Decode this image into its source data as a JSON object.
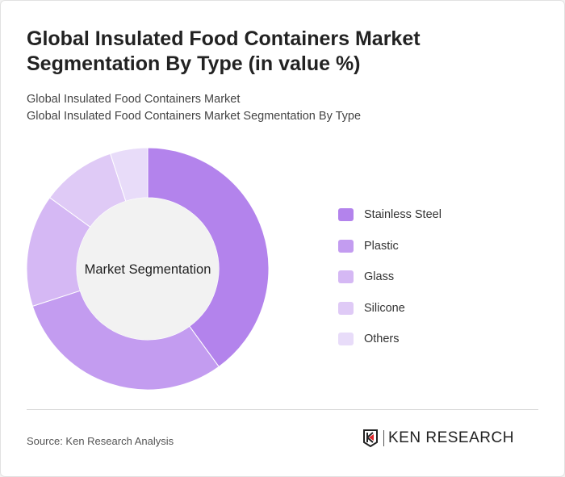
{
  "title": "Global Insulated Food Containers Market Segmentation By Type (in value %)",
  "subtitle_1": "Global Insulated Food Containers Market",
  "subtitle_2": "Global Insulated Food Containers Market Segmentation By Type",
  "source": "Source: Ken Research Analysis",
  "logo_text": "KEN RESEARCH",
  "chart_data": {
    "type": "pie",
    "variant": "donut",
    "center_label": "Market Segmentation",
    "categories": [
      "Stainless Steel",
      "Plastic",
      "Glass",
      "Silicone",
      "Others"
    ],
    "values": [
      40,
      30,
      15,
      10,
      5
    ],
    "colors": [
      "#b383ec",
      "#c39cf0",
      "#d5b8f4",
      "#dfcaf6",
      "#e8dcf9"
    ],
    "legend_position": "right"
  }
}
